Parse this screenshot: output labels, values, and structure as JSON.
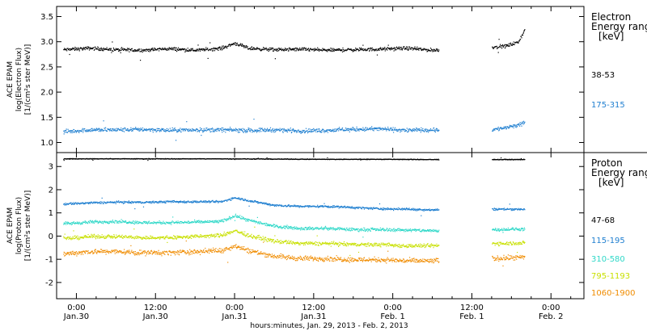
{
  "xaxis": {
    "label": "hours:minutes, Jan. 29, 2013 - Feb. 2, 2013",
    "ticks": [
      {
        "t": 0,
        "time": "0:00",
        "date": "Jan.30"
      },
      {
        "t": 12,
        "time": "12:00",
        "date": "Jan.30"
      },
      {
        "t": 24,
        "time": "0:00",
        "date": "Jan.31"
      },
      {
        "t": 36,
        "time": "12:00",
        "date": "Jan.31"
      },
      {
        "t": 48,
        "time": "0:00",
        "date": "Feb. 1"
      },
      {
        "t": 60,
        "time": "12:00",
        "date": "Feb. 1"
      },
      {
        "t": 72,
        "time": "0:00",
        "date": "Feb. 2"
      }
    ]
  },
  "electron_panel": {
    "ylabel": [
      "ACE EPAM",
      "log(Electron Flux)",
      "[1/(cm²s ster MeV)]"
    ],
    "yticks": [
      "1.0",
      "1.5",
      "2.0",
      "2.5",
      "3.0",
      "3.5"
    ],
    "legend_title": [
      "Electron",
      "Energy ranges",
      "[keV]"
    ],
    "channels": [
      {
        "label": "38-53",
        "color": "#000000"
      },
      {
        "label": "175-315",
        "color": "#1f7fd0"
      }
    ]
  },
  "proton_panel": {
    "ylabel": [
      "ACE EPAM",
      "log(Proton Flux)",
      "[1/(cm²s ster MeV)]"
    ],
    "yticks": [
      "-2",
      "-1",
      "0",
      "1",
      "2",
      "3"
    ],
    "legend_title": [
      "Proton",
      "Energy ranges",
      "[keV]"
    ],
    "channels": [
      {
        "label": "47-68",
        "color": "#000000"
      },
      {
        "label": "115-195",
        "color": "#1f7fd0"
      },
      {
        "label": "310-580",
        "color": "#2ed8c8"
      },
      {
        "label": "795-1193",
        "color": "#c8e000"
      },
      {
        "label": "1060-1900",
        "color": "#f08c00"
      }
    ]
  },
  "chart_data": [
    {
      "type": "scatter",
      "xlabel": "hours:minutes, Jan. 29, 2013 - Feb. 2, 2013",
      "ylabel": "ACE EPAM log(Electron Flux) [1/(cm²s ster MeV)]",
      "xlim": [
        -3,
        77
      ],
      "ylim": [
        0.8,
        3.7
      ],
      "data_gaps_hours": [
        [
          55,
          63
        ]
      ],
      "series": [
        {
          "name": "38-53",
          "color": "#000000",
          "points": [
            [
              -2,
              2.85
            ],
            [
              2,
              2.88
            ],
            [
              6,
              2.85
            ],
            [
              10,
              2.84
            ],
            [
              14,
              2.87
            ],
            [
              18,
              2.84
            ],
            [
              22,
              2.88
            ],
            [
              24,
              2.98
            ],
            [
              26,
              2.88
            ],
            [
              30,
              2.85
            ],
            [
              34,
              2.86
            ],
            [
              38,
              2.84
            ],
            [
              42,
              2.85
            ],
            [
              46,
              2.86
            ],
            [
              50,
              2.88
            ],
            [
              54,
              2.84
            ],
            [
              63,
              2.9
            ],
            [
              65,
              2.92
            ],
            [
              67,
              3.0
            ],
            [
              68,
              3.25
            ]
          ]
        },
        {
          "name": "175-315",
          "color": "#1f7fd0",
          "points": [
            [
              -2,
              1.22
            ],
            [
              2,
              1.26
            ],
            [
              6,
              1.26
            ],
            [
              10,
              1.27
            ],
            [
              14,
              1.25
            ],
            [
              18,
              1.26
            ],
            [
              22,
              1.26
            ],
            [
              26,
              1.25
            ],
            [
              30,
              1.26
            ],
            [
              34,
              1.24
            ],
            [
              38,
              1.25
            ],
            [
              42,
              1.27
            ],
            [
              46,
              1.28
            ],
            [
              50,
              1.25
            ],
            [
              54,
              1.26
            ],
            [
              63,
              1.26
            ],
            [
              65,
              1.3
            ],
            [
              67,
              1.35
            ],
            [
              68,
              1.4
            ]
          ]
        }
      ]
    },
    {
      "type": "scatter",
      "xlabel": "hours:minutes, Jan. 29, 2013 - Feb. 2, 2013",
      "ylabel": "ACE EPAM log(Proton Flux) [1/(cm²s ster MeV)]",
      "xlim": [
        -3,
        77
      ],
      "ylim": [
        -2.7,
        3.6
      ],
      "data_gaps_hours": [
        [
          55,
          63
        ]
      ],
      "series": [
        {
          "name": "47-68",
          "color": "#000000",
          "points": [
            [
              -2,
              3.35
            ],
            [
              6,
              3.35
            ],
            [
              14,
              3.35
            ],
            [
              22,
              3.35
            ],
            [
              30,
              3.34
            ],
            [
              38,
              3.33
            ],
            [
              46,
              3.33
            ],
            [
              54,
              3.32
            ],
            [
              63,
              3.32
            ],
            [
              68,
              3.32
            ]
          ]
        },
        {
          "name": "115-195",
          "color": "#1f7fd0",
          "points": [
            [
              -2,
              1.4
            ],
            [
              2,
              1.45
            ],
            [
              6,
              1.48
            ],
            [
              10,
              1.47
            ],
            [
              14,
              1.5
            ],
            [
              18,
              1.5
            ],
            [
              22,
              1.5
            ],
            [
              24,
              1.68
            ],
            [
              26,
              1.55
            ],
            [
              30,
              1.35
            ],
            [
              34,
              1.3
            ],
            [
              38,
              1.3
            ],
            [
              42,
              1.25
            ],
            [
              46,
              1.2
            ],
            [
              50,
              1.18
            ],
            [
              54,
              1.15
            ],
            [
              63,
              1.18
            ],
            [
              68,
              1.18
            ]
          ]
        },
        {
          "name": "310-580",
          "color": "#2ed8c8",
          "points": [
            [
              -2,
              0.55
            ],
            [
              2,
              0.62
            ],
            [
              6,
              0.65
            ],
            [
              10,
              0.6
            ],
            [
              14,
              0.6
            ],
            [
              18,
              0.62
            ],
            [
              22,
              0.65
            ],
            [
              24,
              0.9
            ],
            [
              26,
              0.7
            ],
            [
              30,
              0.45
            ],
            [
              34,
              0.35
            ],
            [
              38,
              0.35
            ],
            [
              42,
              0.3
            ],
            [
              46,
              0.3
            ],
            [
              50,
              0.28
            ],
            [
              54,
              0.25
            ],
            [
              63,
              0.3
            ],
            [
              68,
              0.32
            ]
          ]
        },
        {
          "name": "795-1193",
          "color": "#c8e000",
          "points": [
            [
              -2,
              -0.1
            ],
            [
              2,
              0.0
            ],
            [
              6,
              0.0
            ],
            [
              10,
              -0.05
            ],
            [
              14,
              -0.05
            ],
            [
              18,
              0.0
            ],
            [
              22,
              0.05
            ],
            [
              24,
              0.25
            ],
            [
              26,
              0.05
            ],
            [
              30,
              -0.2
            ],
            [
              34,
              -0.3
            ],
            [
              38,
              -0.3
            ],
            [
              42,
              -0.35
            ],
            [
              46,
              -0.35
            ],
            [
              50,
              -0.4
            ],
            [
              54,
              -0.4
            ],
            [
              63,
              -0.3
            ],
            [
              68,
              -0.28
            ]
          ]
        },
        {
          "name": "1060-1900",
          "color": "#f08c00",
          "points": [
            [
              -2,
              -0.75
            ],
            [
              2,
              -0.65
            ],
            [
              6,
              -0.65
            ],
            [
              10,
              -0.7
            ],
            [
              14,
              -0.7
            ],
            [
              18,
              -0.65
            ],
            [
              22,
              -0.6
            ],
            [
              24,
              -0.4
            ],
            [
              26,
              -0.6
            ],
            [
              30,
              -0.85
            ],
            [
              34,
              -0.95
            ],
            [
              38,
              -0.95
            ],
            [
              42,
              -1.0
            ],
            [
              46,
              -1.0
            ],
            [
              50,
              -1.05
            ],
            [
              54,
              -1.05
            ],
            [
              63,
              -0.95
            ],
            [
              68,
              -0.9
            ]
          ]
        }
      ]
    }
  ]
}
